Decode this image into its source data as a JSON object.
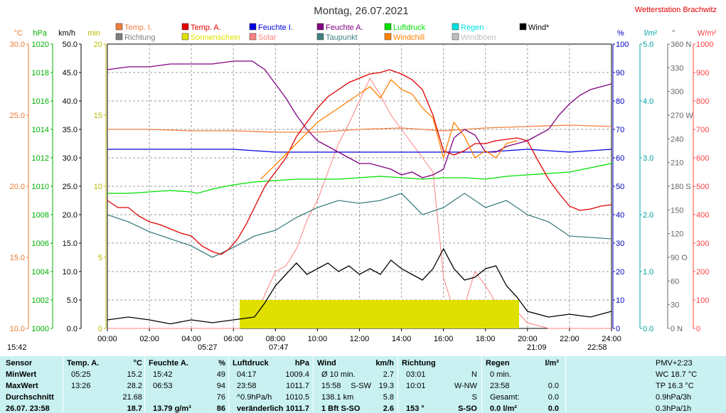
{
  "chart_data": {
    "type": "line",
    "title": "Montag, 26.07.2021",
    "station": "Wetterstation Brachwitz",
    "x_range": [
      "00:00",
      "24:00"
    ],
    "x_ticks": [
      "00:00",
      "02:00",
      "04:00",
      "06:00",
      "08:00",
      "10:00",
      "12:00",
      "14:00",
      "16:00",
      "18:00",
      "20:00",
      "22:00",
      "24:00"
    ],
    "axes": {
      "temp": {
        "unit": "°C",
        "color": "#e87a30",
        "ticks": [
          "30.0",
          "25.0",
          "20.0",
          "15.0",
          "10.0"
        ],
        "range": [
          10,
          30
        ]
      },
      "pressure": {
        "unit": "hPa",
        "color": "#00b000",
        "ticks": [
          "1020",
          "1018",
          "1016",
          "1014",
          "1012",
          "1010",
          "1008",
          "1006",
          "1004",
          "1002",
          "1000"
        ],
        "range": [
          1000,
          1020
        ]
      },
      "wind": {
        "unit": "km/h",
        "color": "#000000",
        "ticks": [
          "50.0",
          "45.0",
          "40.0",
          "35.0",
          "30.0",
          "25.0",
          "20.0",
          "15.0",
          "10.0",
          "5.0",
          "0.0"
        ],
        "range": [
          0,
          50
        ]
      },
      "sunshine": {
        "unit": "min",
        "color": "#c8c800",
        "ticks": [
          "20",
          "15",
          "10",
          "5",
          "0"
        ],
        "range": [
          0,
          20
        ]
      },
      "humidity": {
        "unit": "%",
        "color": "#0000c0",
        "ticks": [
          "100",
          "90",
          "80",
          "70",
          "60",
          "50",
          "40",
          "30",
          "20",
          "10",
          "0"
        ],
        "range": [
          0,
          100
        ]
      },
      "rain": {
        "unit": "l/m²",
        "color": "#00a0a0",
        "ticks": [
          "5.0",
          "4.0",
          "3.0",
          "2.0",
          "1.0",
          "0.0"
        ],
        "range": [
          0,
          5
        ]
      },
      "direction": {
        "unit": "°",
        "color": "#666666",
        "ticks": [
          "360 N",
          "330",
          "300",
          "270 W",
          "240",
          "210",
          "180 S",
          "150",
          "120",
          "90 O",
          "60",
          "30",
          "0 N"
        ],
        "range": [
          0,
          360
        ]
      },
      "solar": {
        "unit": "W/m²",
        "color": "#ff4040",
        "ticks": [
          "1000",
          "900",
          "800",
          "700",
          "600",
          "500",
          "400",
          "300",
          "200",
          "100",
          "0"
        ],
        "range": [
          0,
          1000
        ]
      }
    },
    "legend": [
      {
        "label": "Temp. I.",
        "color": "#f08040"
      },
      {
        "label": "Temp. A.",
        "color": "#e00000"
      },
      {
        "label": "Feuchte I.",
        "color": "#0000e0"
      },
      {
        "label": "Feuchte A.",
        "color": "#800080"
      },
      {
        "label": "Luftdruck",
        "color": "#00e000"
      },
      {
        "label": "Regen",
        "color": "#00e0e0"
      },
      {
        "label": "Wind*",
        "color": "#000000"
      },
      {
        "label": "Richtung",
        "color": "#808080"
      },
      {
        "label": "Sonnenschein",
        "color": "#e0e000"
      },
      {
        "label": "Solar",
        "color": "#ff8080"
      },
      {
        "label": "Taupunkt",
        "color": "#408080"
      },
      {
        "label": "Windchill",
        "color": "#ff8000"
      },
      {
        "label": "Windböen",
        "color": "#c0c0c0"
      }
    ],
    "markers": {
      "left_time": "15:42",
      "sunrise": "05:27",
      "dawn": "07:47",
      "sunset": "21:09",
      "dusk": "22:58",
      "pmv": "PMV+2:23"
    },
    "series": [
      {
        "name": "Temp. A.",
        "axis": "temp",
        "color": "#e00000",
        "x": [
          0,
          0.5,
          1,
          1.5,
          2,
          2.5,
          3,
          3.5,
          4,
          4.5,
          5,
          5.42,
          5.8,
          6.2,
          6.6,
          7,
          7.5,
          8,
          8.5,
          9,
          9.5,
          10,
          10.5,
          11,
          11.5,
          12,
          12.5,
          13,
          13.43,
          14,
          14.5,
          15,
          15.5,
          16,
          16.5,
          17,
          17.5,
          18,
          18.5,
          19,
          19.5,
          20,
          20.5,
          21,
          21.5,
          22,
          22.5,
          23,
          23.5,
          24
        ],
        "y": [
          19.0,
          18.5,
          18.5,
          17.9,
          17.5,
          17.3,
          17.0,
          16.7,
          16.5,
          15.8,
          15.4,
          15.2,
          15.6,
          16.3,
          17.3,
          18.5,
          20.0,
          21.0,
          22.0,
          23.5,
          24.5,
          25.5,
          26.3,
          26.8,
          27.3,
          27.6,
          27.9,
          28.0,
          28.2,
          27.9,
          27.5,
          26.8,
          25.0,
          22.5,
          22.2,
          22.5,
          23.0,
          23.0,
          23.2,
          23.3,
          23.4,
          23.2,
          21.8,
          20.5,
          19.5,
          18.6,
          18.3,
          18.4,
          18.6,
          18.7
        ]
      },
      {
        "name": "Temp. I.",
        "axis": "temp",
        "color": "#f08040",
        "x": [
          0,
          2,
          4,
          6,
          8,
          10,
          12,
          14,
          16,
          18,
          20,
          22,
          24
        ],
        "y": [
          24.0,
          24.0,
          23.9,
          23.9,
          23.8,
          23.8,
          24.0,
          24.1,
          23.9,
          24.1,
          24.2,
          24.3,
          24.2
        ]
      },
      {
        "name": "Feuchte A.",
        "axis": "humidity",
        "color": "#800080",
        "x": [
          0,
          1,
          2,
          3,
          4,
          5,
          6,
          6.9,
          7.5,
          8,
          8.5,
          9,
          9.5,
          10,
          10.5,
          11,
          11.5,
          12,
          12.5,
          13,
          13.5,
          14,
          14.5,
          15,
          15.5,
          16,
          16.5,
          17,
          17.5,
          18,
          18.5,
          19,
          19.5,
          20,
          20.5,
          21,
          21.5,
          22,
          22.5,
          23,
          23.5,
          24
        ],
        "y": [
          91,
          92,
          92,
          93,
          93,
          93,
          94,
          94,
          91,
          86,
          81,
          75,
          70,
          66,
          64,
          62,
          60,
          58,
          58,
          57,
          56,
          54,
          55,
          53,
          54,
          56,
          67,
          70,
          68,
          62,
          62,
          64,
          65,
          66,
          68,
          70,
          75,
          79,
          82,
          84,
          85,
          86
        ]
      },
      {
        "name": "Feuchte I.",
        "axis": "humidity",
        "color": "#0000e0",
        "x": [
          0,
          2,
          4,
          6,
          8,
          10,
          12,
          14,
          16,
          18,
          20,
          22,
          24
        ],
        "y": [
          63,
          63,
          63,
          63,
          62,
          62,
          62,
          62,
          62,
          62,
          63,
          62,
          63
        ]
      },
      {
        "name": "Luftdruck",
        "axis": "pressure",
        "color": "#00e000",
        "x": [
          0,
          1,
          2,
          3,
          4,
          4.28,
          5,
          6,
          7,
          8,
          9,
          10,
          11,
          12,
          13,
          14,
          15,
          16,
          17,
          18,
          19,
          20,
          21,
          22,
          23,
          23.97,
          24
        ],
        "y": [
          1009.5,
          1009.5,
          1009.6,
          1009.7,
          1009.6,
          1009.5,
          1009.8,
          1010.1,
          1010.3,
          1010.4,
          1010.5,
          1010.5,
          1010.5,
          1010.6,
          1010.7,
          1010.6,
          1010.5,
          1010.6,
          1010.6,
          1010.5,
          1010.7,
          1010.8,
          1010.9,
          1011.0,
          1011.3,
          1011.6,
          1011.7
        ]
      },
      {
        "name": "Taupunkt",
        "axis": "temp",
        "color": "#408080",
        "x": [
          0,
          1,
          2,
          3,
          4,
          5,
          6,
          7,
          8,
          9,
          10,
          11,
          12,
          13,
          14,
          15,
          16,
          17,
          18,
          19,
          20,
          21,
          22,
          23,
          24
        ],
        "y": [
          18.0,
          17.5,
          16.8,
          16.3,
          15.8,
          15.0,
          15.7,
          16.5,
          16.9,
          17.8,
          18.5,
          19.0,
          18.8,
          19.0,
          19.5,
          18.0,
          18.5,
          19.5,
          18.5,
          19.0,
          18.0,
          17.5,
          16.5,
          16.4,
          16.3
        ]
      },
      {
        "name": "Windchill",
        "axis": "temp",
        "color": "#ff8000",
        "x": [
          7.3,
          8,
          9,
          10,
          11,
          12,
          12.5,
          13,
          13.5,
          14,
          14.5,
          15,
          15.5,
          16,
          16.5,
          17,
          17.5,
          18,
          18.5,
          19,
          19.5
        ],
        "y": [
          20.5,
          21.5,
          23.0,
          24.5,
          25.5,
          26.5,
          27.0,
          26.2,
          27.5,
          26.8,
          26.5,
          25.5,
          24.8,
          22.0,
          24.5,
          23.5,
          22.0,
          22.5,
          22.0,
          23.0,
          23.2
        ]
      },
      {
        "name": "Solar",
        "axis": "solar",
        "color": "#ff8080",
        "x": [
          0,
          6.3,
          7,
          7.5,
          8,
          8.5,
          9,
          9.5,
          10,
          10.5,
          11,
          11.5,
          12,
          12.5,
          13,
          13.5,
          14,
          14.5,
          15,
          15.5,
          16,
          16.5,
          17,
          17.5,
          18,
          18.5,
          19,
          19.5,
          20,
          21,
          24
        ],
        "y": [
          0,
          0,
          20,
          120,
          200,
          220,
          280,
          380,
          450,
          550,
          650,
          720,
          800,
          880,
          820,
          750,
          700,
          650,
          600,
          550,
          180,
          60,
          80,
          200,
          150,
          90,
          80,
          60,
          20,
          0,
          0
        ]
      },
      {
        "name": "Wind*",
        "axis": "wind",
        "color": "#000000",
        "x": [
          0,
          1,
          2,
          3,
          4,
          5,
          6,
          7,
          7.5,
          8,
          8.5,
          9,
          9.5,
          10,
          10.5,
          11,
          11.5,
          12,
          12.5,
          13,
          13.5,
          14,
          14.5,
          15,
          15.5,
          16,
          16.5,
          17,
          17.5,
          18,
          18.5,
          19,
          19.5,
          20,
          21,
          22,
          23,
          24
        ],
        "y": [
          1.5,
          2.0,
          1.5,
          0.8,
          1.5,
          1.0,
          1.5,
          2.0,
          4.5,
          7.5,
          9.5,
          11.5,
          9.5,
          10.5,
          11.5,
          10.0,
          11.0,
          9.5,
          10.5,
          9.5,
          12.0,
          10.5,
          9.5,
          8.5,
          10.5,
          14.0,
          10.5,
          8.5,
          9.0,
          10.5,
          11.0,
          7.5,
          5.5,
          3.0,
          2.0,
          2.5,
          2.0,
          3.0
        ]
      },
      {
        "name": "Sonnenschein",
        "axis": "sunshine",
        "color": "#e0e000",
        "x": [
          6.3,
          7.0,
          8,
          9,
          10,
          11,
          12,
          13,
          14,
          15,
          16,
          17,
          18,
          18.5,
          19,
          19.5,
          19.6
        ],
        "y": [
          2.0,
          2.0,
          2.0,
          2.0,
          2.0,
          2.0,
          2.0,
          2.0,
          2.0,
          2.0,
          2.0,
          2.0,
          2.0,
          2.0,
          2.0,
          2.0,
          2.0
        ]
      }
    ],
    "summary": {
      "label_col": {
        "header": "Sensor",
        "rows": [
          "MinWert",
          "MaxWert",
          "Durchschnitt",
          "26.07. 23:58"
        ]
      },
      "temp": {
        "header": "Temp. A.",
        "unit": "°C",
        "rows": [
          [
            "05:25",
            "15.2"
          ],
          [
            "13:26",
            "28.2"
          ],
          [
            "",
            "21.68"
          ],
          [
            "",
            "18.7"
          ]
        ]
      },
      "hum": {
        "header": "Feuchte A.",
        "unit": "%",
        "rows": [
          [
            "15:42",
            "49"
          ],
          [
            "06:53",
            "94"
          ],
          [
            "",
            "76"
          ],
          [
            "13.79 g/m³",
            "86"
          ]
        ]
      },
      "press": {
        "header": "Luftdruck",
        "unit": "hPa",
        "rows": [
          [
            "04:17",
            "1009.4"
          ],
          [
            "23:58",
            "1011.7"
          ],
          [
            "^0.9hPa/h",
            "1010.5"
          ],
          [
            "veränderlich",
            "1011.7"
          ]
        ]
      },
      "wind": {
        "header": "Wind",
        "unit": "km/h",
        "rows": [
          [
            "Ø 10 min.",
            "",
            "2.7"
          ],
          [
            "15:58",
            "S-SW",
            "19.3"
          ],
          [
            "138.1 km",
            "",
            "5.8"
          ],
          [
            "1 Bft S-SO",
            "",
            "2.6"
          ]
        ]
      },
      "dir": {
        "header": "Richtung",
        "rows": [
          [
            "03:01",
            "N"
          ],
          [
            "10:01",
            "W-NW"
          ],
          [
            "",
            "S"
          ],
          [
            "153 °",
            "S-SO"
          ]
        ]
      },
      "rain": {
        "header": "Regen",
        "unit": "l/m²",
        "rows": [
          [
            "0 min.",
            ""
          ],
          [
            "23:58",
            "0.0"
          ],
          [
            "Gesamt:",
            "0.0"
          ],
          [
            "0.0 l/m²",
            "0.0"
          ]
        ]
      },
      "misc": {
        "header": "PMV+2:23",
        "rows": [
          "WC 18.7 °C",
          "TP 16.3 °C",
          "0.9hPa/3h",
          "0.3hPa/1h"
        ]
      }
    }
  }
}
